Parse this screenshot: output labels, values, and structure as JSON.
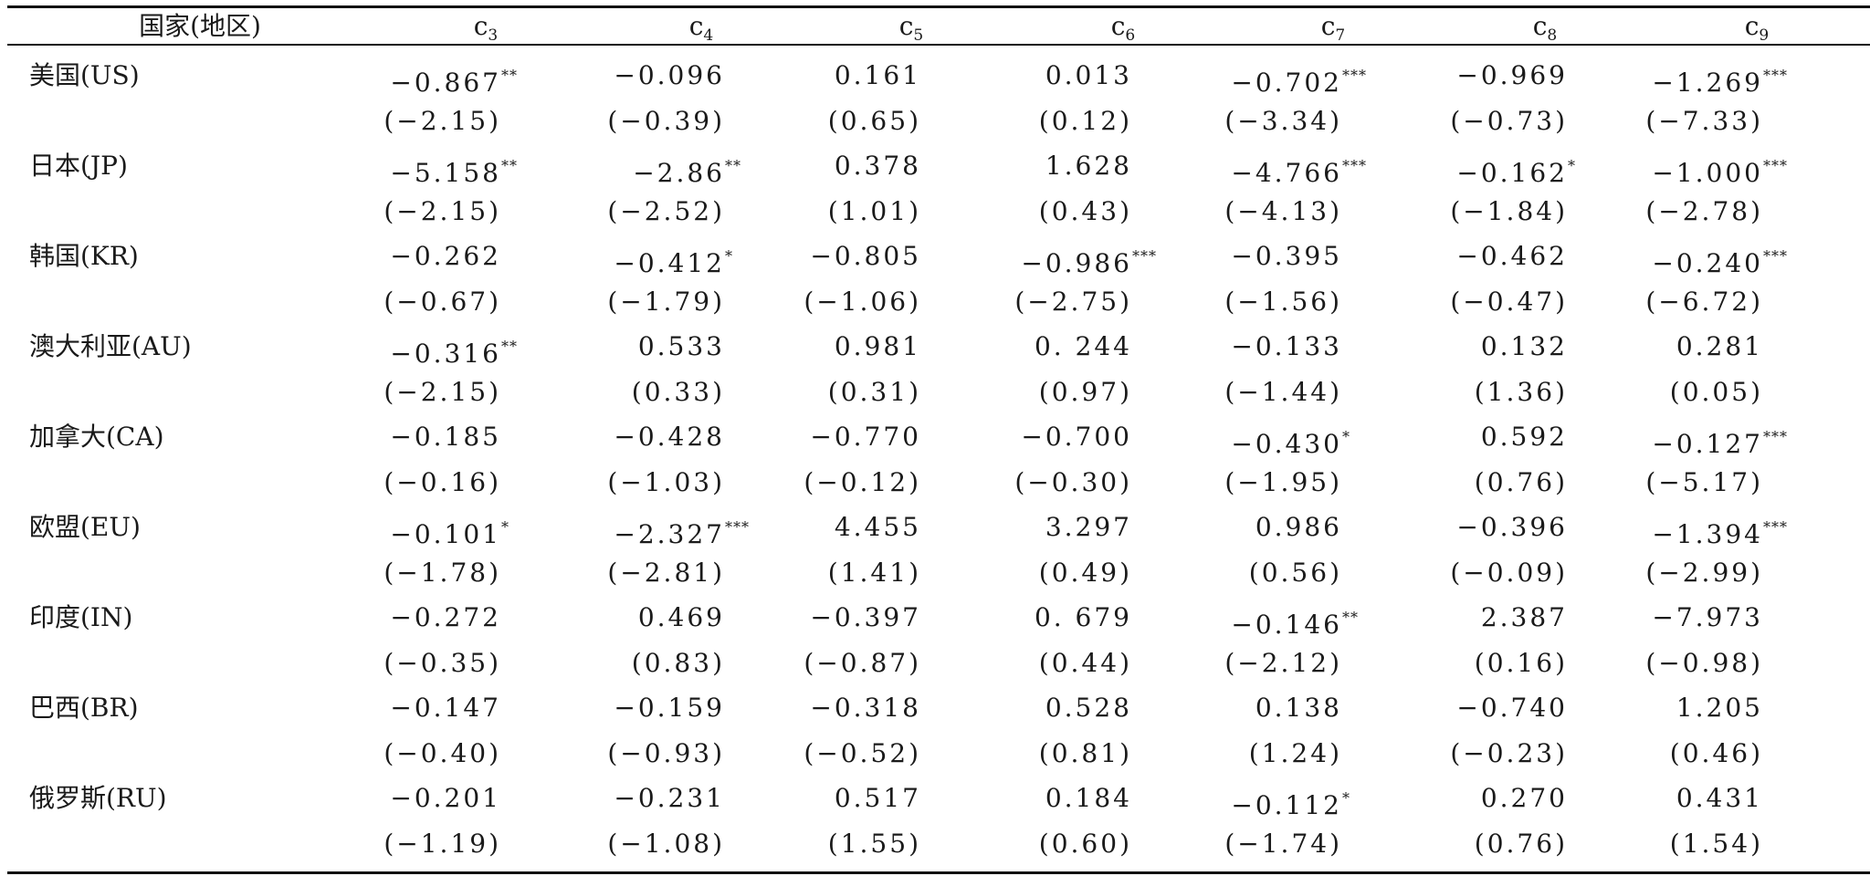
{
  "table": {
    "header": {
      "first": "国家(地区)",
      "cols": [
        {
          "base": "c",
          "sub": "3"
        },
        {
          "base": "c",
          "sub": "4"
        },
        {
          "base": "c",
          "sub": "5"
        },
        {
          "base": "c",
          "sub": "6"
        },
        {
          "base": "c",
          "sub": "7"
        },
        {
          "base": "c",
          "sub": "8"
        },
        {
          "base": "c",
          "sub": "9"
        }
      ]
    },
    "rows": [
      {
        "name": "美国(US)",
        "coef": [
          {
            "v": "−0.867",
            "s": "**"
          },
          {
            "v": "−0.096",
            "s": ""
          },
          {
            "v": "0.161",
            "s": ""
          },
          {
            "v": "0.013",
            "s": ""
          },
          {
            "v": "−0.702",
            "s": "***"
          },
          {
            "v": "−0.969",
            "s": ""
          },
          {
            "v": "−1.269",
            "s": "***"
          }
        ],
        "t": [
          "(−2.15)",
          "(−0.39)",
          "(0.65)",
          "(0.12)",
          "(−3.34)",
          "(−0.73)",
          "(−7.33)"
        ]
      },
      {
        "name": "日本(JP)",
        "coef": [
          {
            "v": "−5.158",
            "s": "**"
          },
          {
            "v": "−2.86",
            "s": "**"
          },
          {
            "v": "0.378",
            "s": ""
          },
          {
            "v": "1.628",
            "s": ""
          },
          {
            "v": "−4.766",
            "s": "***"
          },
          {
            "v": "−0.162",
            "s": "*"
          },
          {
            "v": "−1.000",
            "s": "***"
          }
        ],
        "t": [
          "(−2.15)",
          "(−2.52)",
          "(1.01)",
          "(0.43)",
          "(−4.13)",
          "(−1.84)",
          "(−2.78)"
        ]
      },
      {
        "name": "韩国(KR)",
        "coef": [
          {
            "v": "−0.262",
            "s": ""
          },
          {
            "v": "−0.412",
            "s": "*"
          },
          {
            "v": "−0.805",
            "s": ""
          },
          {
            "v": "−0.986",
            "s": "***"
          },
          {
            "v": "−0.395",
            "s": ""
          },
          {
            "v": "−0.462",
            "s": ""
          },
          {
            "v": "−0.240",
            "s": "***"
          }
        ],
        "t": [
          "(−0.67)",
          "(−1.79)",
          "(−1.06)",
          "(−2.75)",
          "(−1.56)",
          "(−0.47)",
          "(−6.72)"
        ]
      },
      {
        "name": "澳大利亚(AU)",
        "coef": [
          {
            "v": "−0.316",
            "s": "**"
          },
          {
            "v": "0.533",
            "s": ""
          },
          {
            "v": "0.981",
            "s": ""
          },
          {
            "v": "0. 244",
            "s": ""
          },
          {
            "v": "−0.133",
            "s": ""
          },
          {
            "v": "0.132",
            "s": ""
          },
          {
            "v": "0.281",
            "s": ""
          }
        ],
        "t": [
          "(−2.15)",
          "(0.33)",
          "(0.31)",
          "(0.97)",
          "(−1.44)",
          "(1.36)",
          "(0.05)"
        ]
      },
      {
        "name": "加拿大(CA)",
        "coef": [
          {
            "v": "−0.185",
            "s": ""
          },
          {
            "v": "−0.428",
            "s": ""
          },
          {
            "v": "−0.770",
            "s": ""
          },
          {
            "v": "−0.700",
            "s": ""
          },
          {
            "v": "−0.430",
            "s": "*"
          },
          {
            "v": "0.592",
            "s": ""
          },
          {
            "v": "−0.127",
            "s": "***"
          }
        ],
        "t": [
          "(−0.16)",
          "(−1.03)",
          "(−0.12)",
          "(−0.30)",
          "(−1.95)",
          "(0.76)",
          "(−5.17)"
        ]
      },
      {
        "name": "欧盟(EU)",
        "coef": [
          {
            "v": "−0.101",
            "s": "*"
          },
          {
            "v": "−2.327",
            "s": "***"
          },
          {
            "v": "4.455",
            "s": ""
          },
          {
            "v": "3.297",
            "s": ""
          },
          {
            "v": "0.986",
            "s": ""
          },
          {
            "v": "−0.396",
            "s": ""
          },
          {
            "v": "−1.394",
            "s": "***"
          }
        ],
        "t": [
          "(−1.78)",
          "(−2.81)",
          "(1.41)",
          "(0.49)",
          "(0.56)",
          "(−0.09)",
          "(−2.99)"
        ]
      },
      {
        "name": "印度(IN)",
        "coef": [
          {
            "v": "−0.272",
            "s": ""
          },
          {
            "v": "0.469",
            "s": ""
          },
          {
            "v": "−0.397",
            "s": ""
          },
          {
            "v": "0. 679",
            "s": ""
          },
          {
            "v": "−0.146",
            "s": "**"
          },
          {
            "v": "2.387",
            "s": ""
          },
          {
            "v": "−7.973",
            "s": ""
          }
        ],
        "t": [
          "(−0.35)",
          "(0.83)",
          "(−0.87)",
          "(0.44)",
          "(−2.12)",
          "(0.16)",
          "(−0.98)"
        ]
      },
      {
        "name": "巴西(BR)",
        "coef": [
          {
            "v": "−0.147",
            "s": ""
          },
          {
            "v": "−0.159",
            "s": ""
          },
          {
            "v": "−0.318",
            "s": ""
          },
          {
            "v": "0.528",
            "s": ""
          },
          {
            "v": "0.138",
            "s": ""
          },
          {
            "v": "−0.740",
            "s": ""
          },
          {
            "v": "1.205",
            "s": ""
          }
        ],
        "t": [
          "(−0.40)",
          "(−0.93)",
          "(−0.52)",
          "(0.81)",
          "(1.24)",
          "(−0.23)",
          "(0.46)"
        ]
      },
      {
        "name": "俄罗斯(RU)",
        "coef": [
          {
            "v": "−0.201",
            "s": ""
          },
          {
            "v": "−0.231",
            "s": ""
          },
          {
            "v": "0.517",
            "s": ""
          },
          {
            "v": "0.184",
            "s": ""
          },
          {
            "v": "−0.112",
            "s": "*"
          },
          {
            "v": "0.270",
            "s": ""
          },
          {
            "v": "0.431",
            "s": ""
          }
        ],
        "t": [
          "(−1.19)",
          "(−1.08)",
          "(1.55)",
          "(0.60)",
          "(−1.74)",
          "(0.76)",
          "(1.54)"
        ]
      }
    ]
  }
}
